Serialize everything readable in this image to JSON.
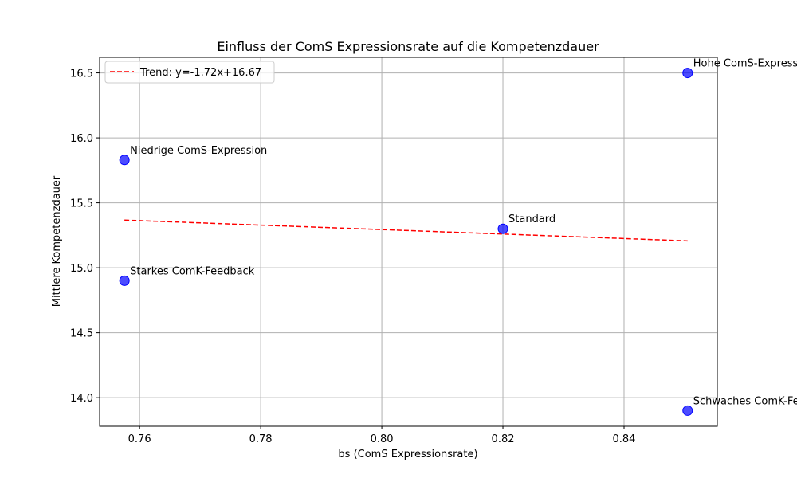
{
  "chart_data": {
    "type": "scatter",
    "title": "Einfluss der ComS Expressionsrate auf die Kompetenzdauer",
    "xlabel": "bs (ComS Expressionsrate)",
    "ylabel": "Mittlere Kompetenzdauer",
    "xlim": [
      0.7534,
      0.8554
    ],
    "ylim": [
      13.78,
      16.62
    ],
    "xticks": [
      0.76,
      0.78,
      0.8,
      0.82,
      0.84
    ],
    "xtick_labels": [
      "0.76",
      "0.78",
      "0.80",
      "0.82",
      "0.84"
    ],
    "yticks": [
      14.0,
      14.5,
      15.0,
      15.5,
      16.0,
      16.5
    ],
    "ytick_labels": [
      "14.0",
      "14.5",
      "15.0",
      "15.5",
      "16.0",
      "16.5"
    ],
    "grid": true,
    "legend_position": "top-left",
    "points": [
      {
        "x": 0.8505,
        "y": 16.5,
        "label": "Hohe ComS-Expression"
      },
      {
        "x": 0.7575,
        "y": 15.83,
        "label": "Niedrige ComS-Expression"
      },
      {
        "x": 0.82,
        "y": 15.3,
        "label": "Standard"
      },
      {
        "x": 0.7575,
        "y": 14.9,
        "label": "Starkes ComK-Feedback"
      },
      {
        "x": 0.8505,
        "y": 13.9,
        "label": "Schwaches ComK-Feedback"
      }
    ],
    "trend": {
      "label": "Trend: y=-1.72x+16.67",
      "slope": -1.72,
      "intercept": 16.67,
      "x_range": [
        0.7575,
        0.8505
      ]
    },
    "colors": {
      "points": "#0000ff",
      "trend": "#ff0000",
      "grid": "#b0b0b0"
    }
  }
}
